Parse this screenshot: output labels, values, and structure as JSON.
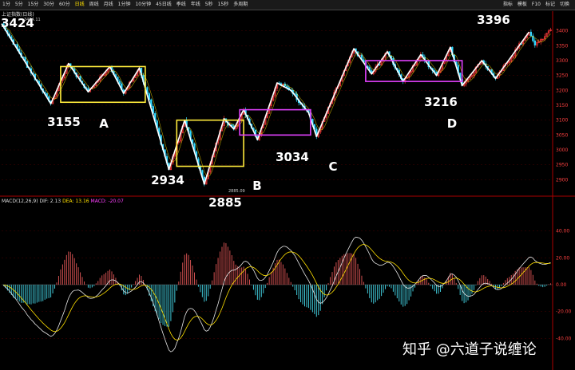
{
  "toolbar": {
    "timeframes": [
      "1分",
      "5分",
      "15分",
      "30分",
      "60分",
      "日线",
      "周线",
      "月线",
      "1分钟",
      "10分钟",
      "45日线",
      "季线",
      "年线",
      "5秒",
      "15秒",
      "多周期"
    ],
    "active_index": 5,
    "right_items": [
      "指标",
      "模板",
      "F10",
      "标记",
      "切换"
    ]
  },
  "chart_title": "上证指数(日线)",
  "watermark": "知乎 @六道子说缠论",
  "macd_legend": {
    "prefix": "MACD(12,26,9)",
    "dif": "DIF: 2.13",
    "dea": "DEA: 13.16",
    "macd": "MACD: -20.07"
  },
  "chart_data": [
    {
      "type": "line",
      "role": "price-panel",
      "ylim": [
        2850,
        3450
      ],
      "y_ticks": [
        2900,
        2950,
        3000,
        3050,
        3100,
        3150,
        3200,
        3250,
        3300,
        3350,
        3400
      ],
      "points": [
        {
          "label": "3424",
          "i": 0,
          "v": 3424
        },
        {
          "label": "3155",
          "i": 25,
          "v": 3155
        },
        {
          "label": "",
          "i": 34,
          "v": 3290
        },
        {
          "label": "",
          "i": 44,
          "v": 3195
        },
        {
          "label": "",
          "i": 55,
          "v": 3280
        },
        {
          "label": "",
          "i": 62,
          "v": 3190
        },
        {
          "label": "",
          "i": 70,
          "v": 3275
        },
        {
          "label": "2934",
          "i": 85,
          "v": 2934
        },
        {
          "label": "",
          "i": 93,
          "v": 3100
        },
        {
          "label": "2885",
          "i": 103,
          "v": 2885
        },
        {
          "label": "",
          "i": 113,
          "v": 3105
        },
        {
          "label": "",
          "i": 118,
          "v": 3070
        },
        {
          "label": "",
          "i": 123,
          "v": 3135
        },
        {
          "label": "3034",
          "i": 130,
          "v": 3034
        },
        {
          "label": "",
          "i": 140,
          "v": 3225
        },
        {
          "label": "",
          "i": 147,
          "v": 3200
        },
        {
          "label": "",
          "i": 156,
          "v": 3125
        },
        {
          "label": "C",
          "i": 160,
          "v": 3045
        },
        {
          "label": "",
          "i": 179,
          "v": 3340
        },
        {
          "label": "",
          "i": 188,
          "v": 3255
        },
        {
          "label": "",
          "i": 196,
          "v": 3330
        },
        {
          "label": "",
          "i": 204,
          "v": 3230
        },
        {
          "label": "",
          "i": 213,
          "v": 3320
        },
        {
          "label": "",
          "i": 221,
          "v": 3250
        },
        {
          "label": "",
          "i": 228,
          "v": 3345
        },
        {
          "label": "3216",
          "i": 234,
          "v": 3216
        },
        {
          "label": "",
          "i": 244,
          "v": 3300
        },
        {
          "label": "",
          "i": 251,
          "v": 3240
        },
        {
          "label": "3396",
          "i": 268,
          "v": 3396
        }
      ],
      "price_labels": [
        {
          "text": "3424",
          "i": 0,
          "v": 3424
        },
        {
          "text": "3155",
          "i": 25,
          "v": 3155
        },
        {
          "text": "2934",
          "i": 85,
          "v": 2934
        },
        {
          "text": "2885",
          "i": 103,
          "v": 2885
        },
        {
          "text": "3034",
          "i": 130,
          "v": 3034
        },
        {
          "text": "3216",
          "i": 234,
          "v": 3216
        },
        {
          "text": "3396",
          "i": 268,
          "v": 3396
        }
      ],
      "letter_labels": [
        "A",
        "B",
        "C",
        "D"
      ],
      "small_annotations": [
        "3424.11",
        "2885.09"
      ],
      "boxes": [
        {
          "name": "A",
          "color": "#ffeb3b",
          "i0": 30,
          "i1": 73,
          "v0": 3160,
          "v1": 3280
        },
        {
          "name": "B",
          "color": "#ffeb3b",
          "i0": 89,
          "i1": 123,
          "v0": 2945,
          "v1": 3100
        },
        {
          "name": "C",
          "color": "#e040fb",
          "i0": 121,
          "i1": 157,
          "v0": 3050,
          "v1": 3135
        },
        {
          "name": "D",
          "color": "#e040fb",
          "i0": 185,
          "i1": 234,
          "v0": 3230,
          "v1": 3300
        }
      ]
    },
    {
      "type": "bar",
      "role": "macd-panel",
      "ylim": [
        -60,
        60
      ],
      "y_ticks": [
        40,
        20,
        0,
        -20,
        -40
      ]
    }
  ],
  "colors": {
    "up": "#ff3b3b",
    "down": "#33d9ff",
    "ma": "#ffffff",
    "grid": "#3a0000",
    "axis": "#aa0000"
  }
}
